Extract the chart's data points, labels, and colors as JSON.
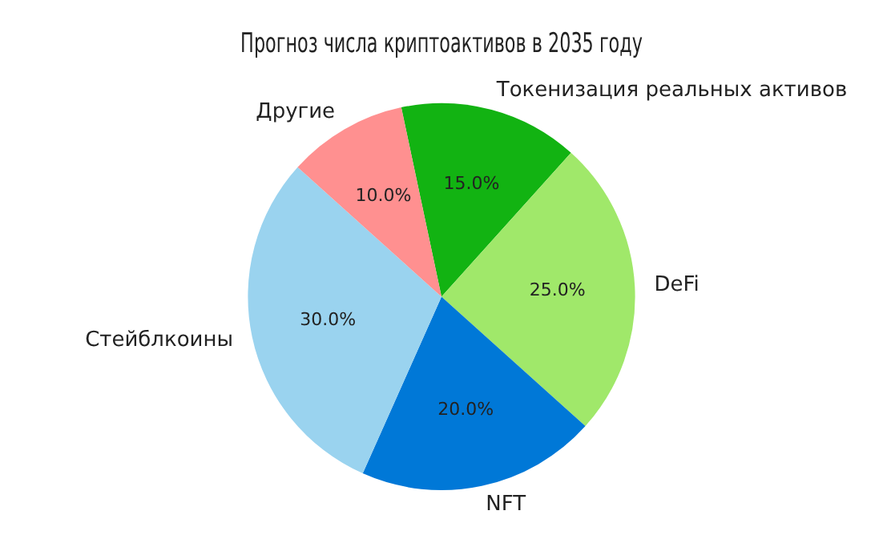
{
  "chart_data": {
    "type": "pie",
    "title": "Прогноз числа криптоактивов в 2035 году",
    "categories": [
      "Токенизация реальных активов",
      "DeFi",
      "NFT",
      "Стейблкоины",
      "Другие"
    ],
    "values": [
      15,
      25,
      20,
      30,
      10
    ],
    "value_labels": [
      "15.0%",
      "25.0%",
      "20.0%",
      "30.0%",
      "10.0%"
    ],
    "colors": [
      "#12b312",
      "#a0e86a",
      "#0078d7",
      "#9ad3ef",
      "#ff9090"
    ],
    "legend": false
  }
}
